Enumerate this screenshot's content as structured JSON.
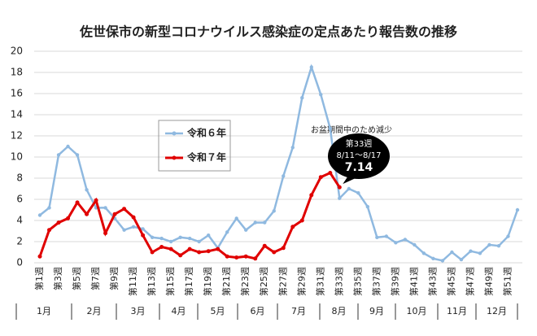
{
  "chart_data": {
    "type": "line",
    "title": "佐世保市の新型コロナウイルス感染症の定点あたり報告数の推移",
    "categories": [
      "第1週",
      null,
      "第3週",
      null,
      "第5週",
      null,
      "第7週",
      null,
      "第9週",
      null,
      "第11週",
      null,
      "第13週",
      null,
      "第15週",
      null,
      "第17週",
      null,
      "第19週",
      null,
      "第21週",
      null,
      "第23週",
      null,
      "第25週",
      null,
      "第27週",
      null,
      "第29週",
      null,
      "第31週",
      null,
      "第33週",
      null,
      "第35週",
      null,
      "第37週",
      null,
      "第39週",
      null,
      "第41週",
      null,
      "第43週",
      null,
      "第45週",
      null,
      "第47週",
      null,
      "第49週",
      null,
      "第51週",
      null
    ],
    "months": [
      "1月",
      "2月",
      "3月",
      "4月",
      "5月",
      "6月",
      "7月",
      "8月",
      "9月",
      "10月",
      "11月",
      "12月"
    ],
    "series": [
      {
        "name": "令和６年",
        "color": "#8fb9e0",
        "values": [
          4.5,
          5.2,
          10.2,
          11.0,
          10.2,
          6.9,
          5.2,
          5.2,
          4.2,
          3.1,
          3.4,
          3.2,
          2.4,
          2.3,
          2.0,
          2.4,
          2.3,
          2.0,
          2.6,
          1.4,
          2.9,
          4.2,
          3.1,
          3.8,
          3.8,
          4.9,
          8.2,
          10.9,
          15.6,
          18.5,
          15.9,
          12.7,
          6.1,
          7.0,
          6.6,
          5.3,
          2.4,
          2.5,
          1.9,
          2.2,
          1.7,
          0.9,
          0.4,
          0.2,
          1.0,
          0.3,
          1.1,
          0.9,
          1.7,
          1.6,
          2.5,
          5.0
        ]
      },
      {
        "name": "令和７年",
        "color": "#e00000",
        "values": [
          0.6,
          3.1,
          3.8,
          4.2,
          5.7,
          4.6,
          5.9,
          2.8,
          4.6,
          5.1,
          4.3,
          2.6,
          1.0,
          1.5,
          1.3,
          0.7,
          1.3,
          1.0,
          1.1,
          1.3,
          0.6,
          0.5,
          0.6,
          0.4,
          1.6,
          1.0,
          1.4,
          3.4,
          4.0,
          6.4,
          8.1,
          8.5,
          7.14,
          null,
          null,
          null,
          null,
          null,
          null,
          null,
          null,
          null,
          null,
          null,
          null,
          null,
          null,
          null,
          null,
          null,
          null,
          null
        ]
      }
    ],
    "annotations": {
      "note": "お盆期間中のため減少",
      "callout": [
        "第33週",
        "8/11～8/17"
      ]
    },
    "ylim": [
      0,
      20
    ],
    "yticks": [
      0,
      2,
      4,
      6,
      8,
      10,
      12,
      14,
      16,
      18,
      20
    ],
    "grid": true
  }
}
